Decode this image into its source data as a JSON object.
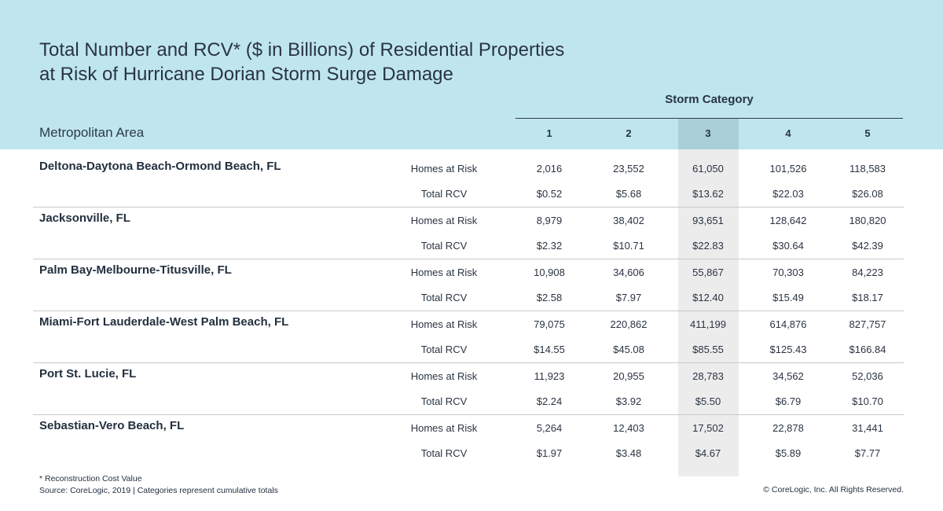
{
  "title_lines": [
    "Total Number and RCV* ($ in Billions) of Residential Properties",
    "at Risk of Hurricane Dorian Storm Surge Damage"
  ],
  "storm_category_label": "Storm Category",
  "metro_area_label": "Metropolitan Area",
  "colors": {
    "header_band": "#bfe6ee",
    "highlight_column": "#dcdcdc",
    "text": "#23303f"
  },
  "chart_data": {
    "type": "table",
    "title": "Total Number and RCV* ($ in Billions) of Residential Properties at Risk of Hurricane Dorian Storm Surge Damage",
    "column_group": "Storm Category",
    "categories": [
      "1",
      "2",
      "3",
      "4",
      "5"
    ],
    "highlighted_category": "3",
    "metrics": [
      "Homes at Risk",
      "Total RCV"
    ],
    "rows": [
      {
        "area": "Deltona-Daytona Beach-Ormond Beach, FL",
        "homes_at_risk": [
          "2,016",
          "23,552",
          "61,050",
          "101,526",
          "118,583"
        ],
        "total_rcv": [
          "$0.52",
          "$5.68",
          "$13.62",
          "$22.03",
          "$26.08"
        ]
      },
      {
        "area": "Jacksonville, FL",
        "homes_at_risk": [
          "8,979",
          "38,402",
          "93,651",
          "128,642",
          "180,820"
        ],
        "total_rcv": [
          "$2.32",
          "$10.71",
          "$22.83",
          "$30.64",
          "$42.39"
        ]
      },
      {
        "area": "Palm Bay-Melbourne-Titusville, FL",
        "homes_at_risk": [
          "10,908",
          "34,606",
          "55,867",
          "70,303",
          "84,223"
        ],
        "total_rcv": [
          "$2.58",
          "$7.97",
          "$12.40",
          "$15.49",
          "$18.17"
        ]
      },
      {
        "area": "Miami-Fort Lauderdale-West Palm Beach, FL",
        "homes_at_risk": [
          "79,075",
          "220,862",
          "411,199",
          "614,876",
          "827,757"
        ],
        "total_rcv": [
          "$14.55",
          "$45.08",
          "$85.55",
          "$125.43",
          "$166.84"
        ]
      },
      {
        "area": "Port St. Lucie, FL",
        "homes_at_risk": [
          "11,923",
          "20,955",
          "28,783",
          "34,562",
          "52,036"
        ],
        "total_rcv": [
          "$2.24",
          "$3.92",
          "$5.50",
          "$6.79",
          "$10.70"
        ]
      },
      {
        "area": "Sebastian-Vero Beach, FL",
        "homes_at_risk": [
          "5,264",
          "12,403",
          "17,502",
          "22,878",
          "31,441"
        ],
        "total_rcv": [
          "$1.97",
          "$3.48",
          "$4.67",
          "$5.89",
          "$7.77"
        ]
      }
    ]
  },
  "footnotes": [
    "* Reconstruction Cost Value",
    "Source: CoreLogic, 2019 | Categories represent cumulative totals"
  ],
  "copyright": "© CoreLogic, Inc. All Rights Reserved."
}
